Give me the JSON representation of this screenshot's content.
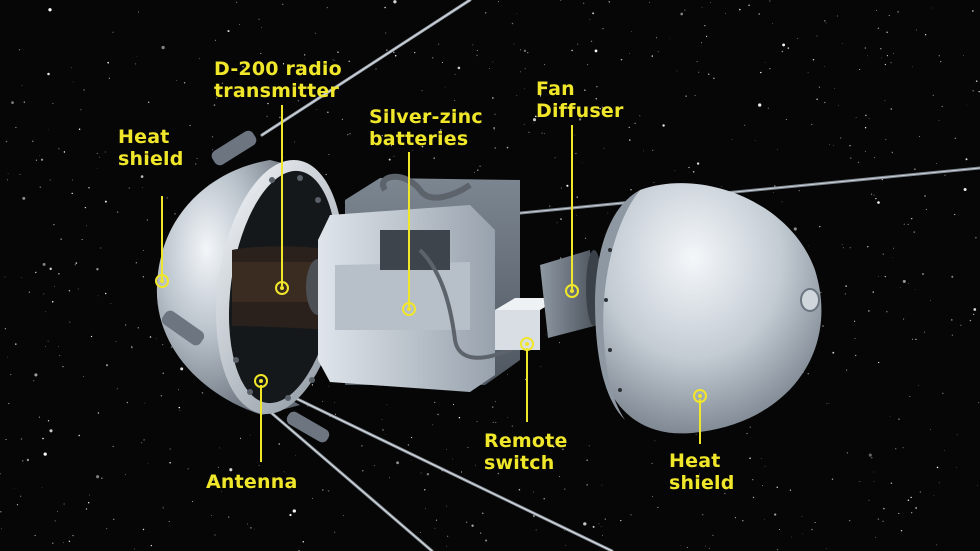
{
  "colors": {
    "background": "#060606",
    "label": "#f0e62a",
    "leader": "#f0e62a",
    "metal_light": "#e8edf2",
    "metal_mid": "#aab3bd",
    "metal_dark": "#5d6670"
  },
  "labels": {
    "heat_shield_left": [
      "Heat",
      "shield"
    ],
    "d200_transmitter": [
      "D-200 radio",
      "transmitter"
    ],
    "silver_zinc_batteries": [
      "Silver-zinc",
      "batteries"
    ],
    "fan_diffuser": [
      "Fan",
      "Diffuser"
    ],
    "antenna": [
      "Antenna"
    ],
    "remote_switch": [
      "Remote",
      "switch"
    ],
    "heat_shield_right": [
      "Heat",
      "shield"
    ]
  }
}
